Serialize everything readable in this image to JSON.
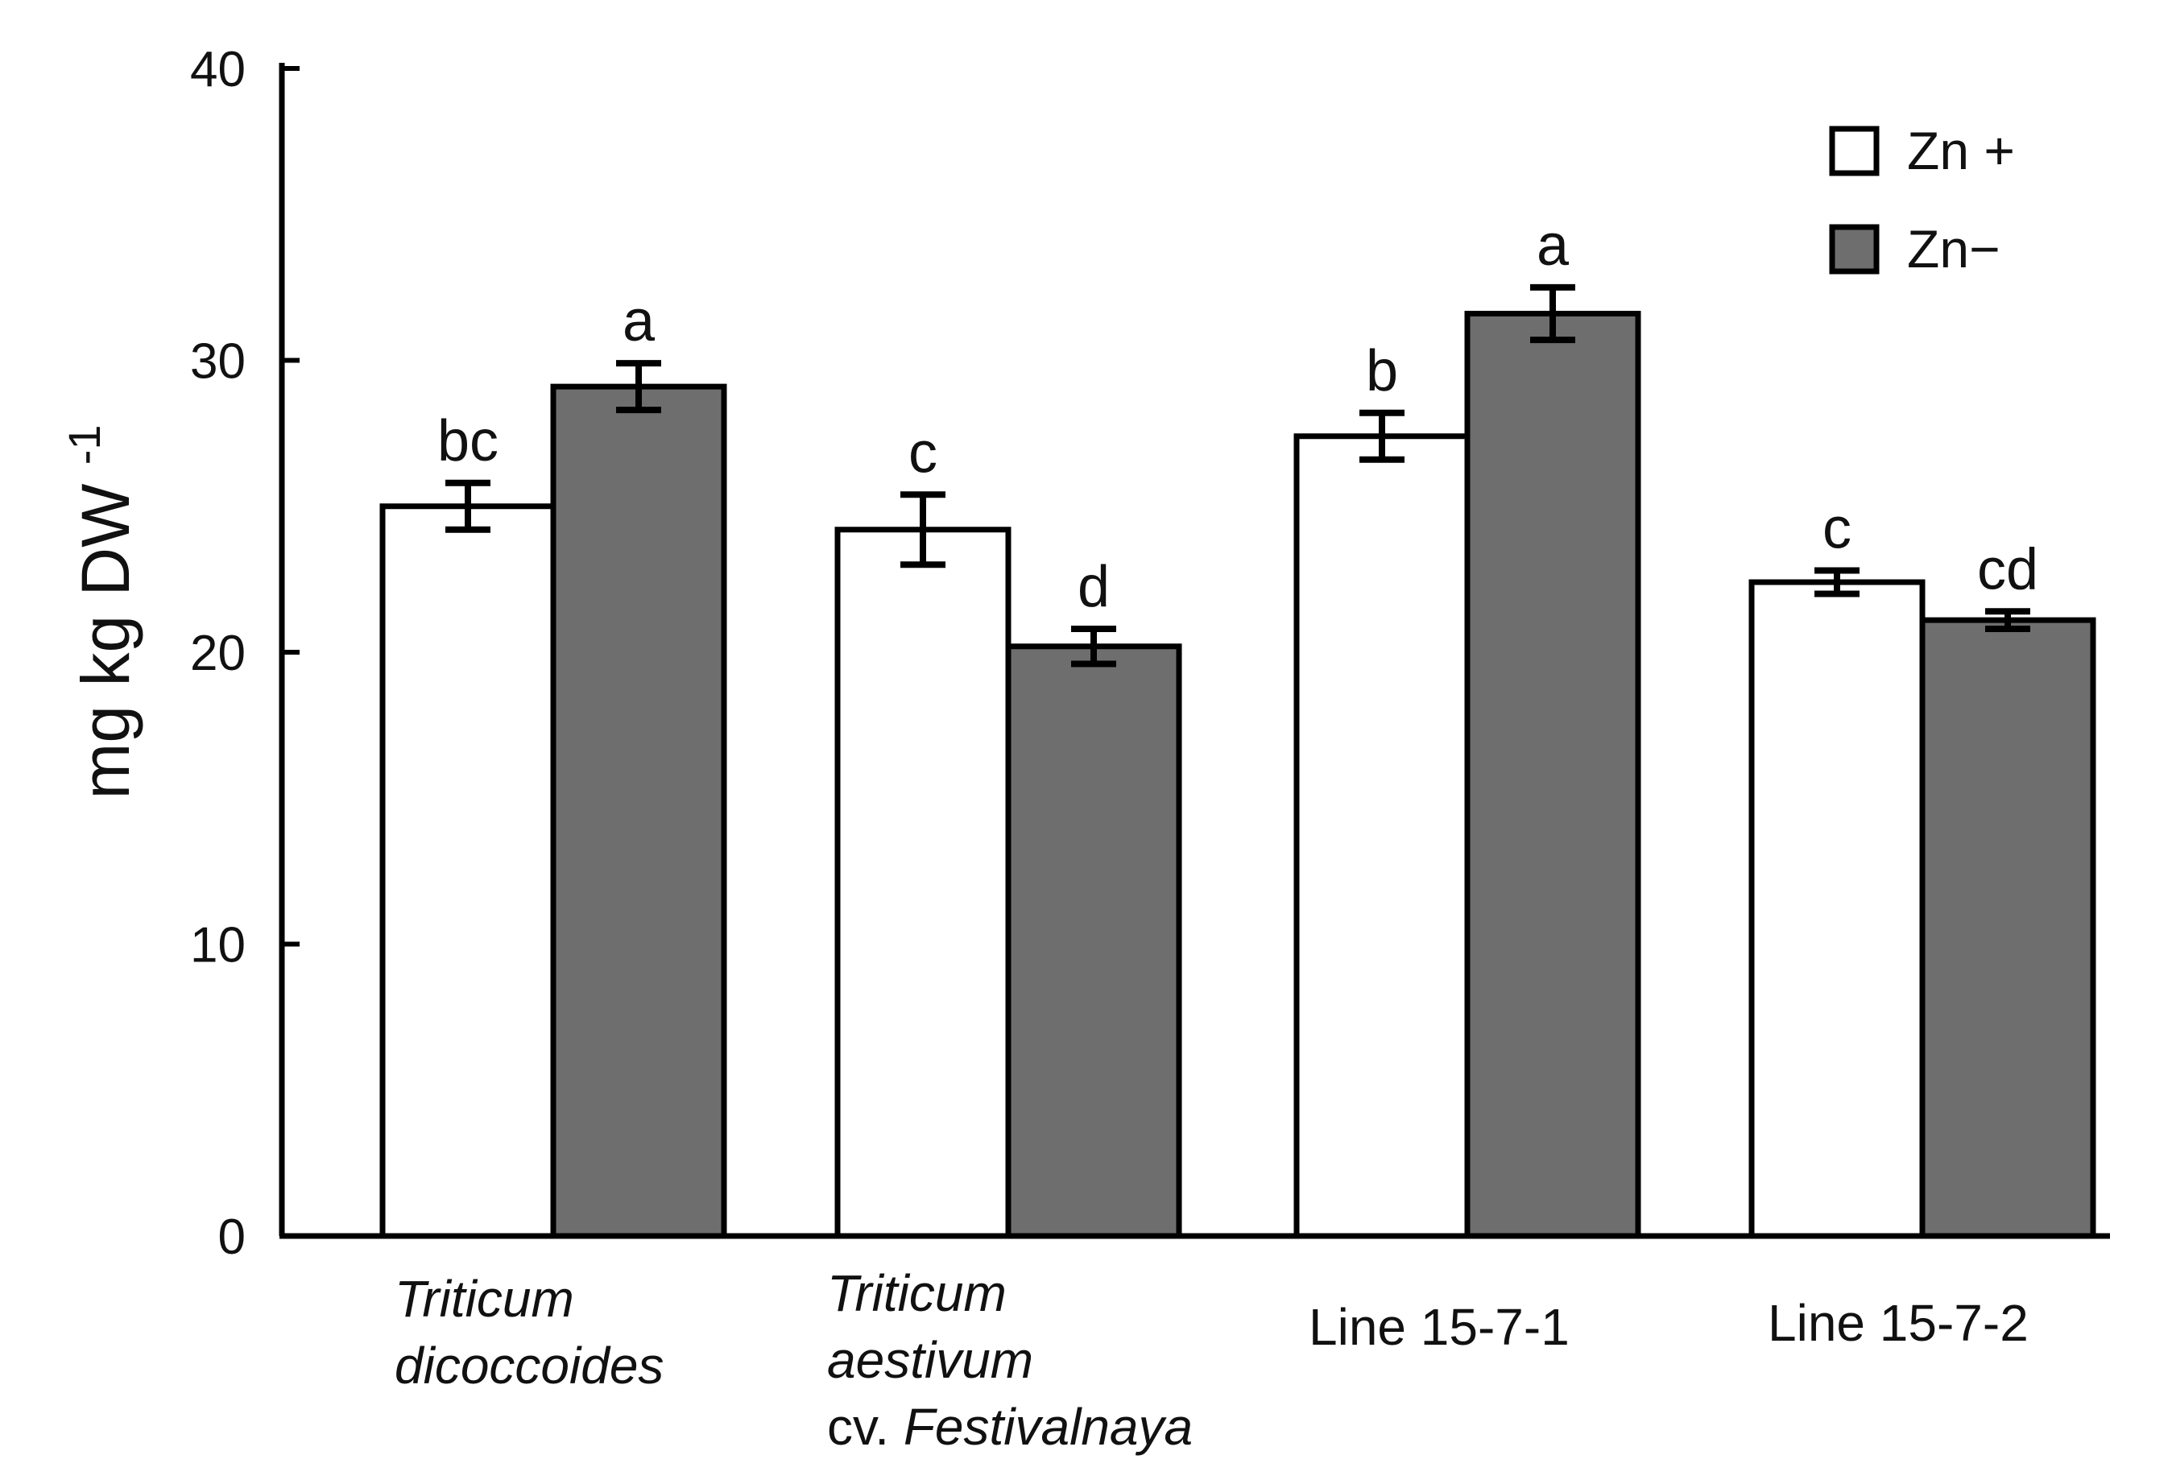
{
  "chart_data": {
    "type": "bar",
    "ylabel": "mg kg DW",
    "ylabel_superscript": "-1",
    "ylim": [
      0,
      40
    ],
    "yticks": [
      "0",
      "10",
      "20",
      "30",
      "40"
    ],
    "categories": [
      {
        "lines": [
          {
            "parts": [
              {
                "text": "Triticum",
                "italic": true
              }
            ]
          },
          {
            "parts": [
              {
                "text": "dicoccoides",
                "italic": true
              }
            ]
          }
        ]
      },
      {
        "lines": [
          {
            "parts": [
              {
                "text": "Triticum",
                "italic": true
              }
            ]
          },
          {
            "parts": [
              {
                "text": "aestivum",
                "italic": true
              }
            ]
          },
          {
            "parts": [
              {
                "text": "cv. ",
                "italic": false
              },
              {
                "text": "Festivalnaya",
                "italic": true
              }
            ]
          }
        ]
      },
      {
        "lines": [
          {
            "parts": [
              {
                "text": "Line 15-7-1",
                "italic": false
              }
            ]
          }
        ]
      },
      {
        "lines": [
          {
            "parts": [
              {
                "text": "Line 15-7-2",
                "italic": false
              }
            ]
          }
        ]
      }
    ],
    "series": [
      {
        "name": "Zn +",
        "color": "#ffffff",
        "values": [
          25.0,
          24.2,
          27.4,
          22.4
        ],
        "errors": [
          0.8,
          1.2,
          0.8,
          0.4
        ],
        "letters": [
          "bc",
          "c",
          "b",
          "c"
        ]
      },
      {
        "name": "Zn−",
        "color": "#6e6e6e",
        "values": [
          29.1,
          20.2,
          31.6,
          21.1
        ],
        "errors": [
          0.8,
          0.6,
          0.9,
          0.3
        ],
        "letters": [
          "a",
          "d",
          "a",
          "cd"
        ]
      }
    ],
    "legend_position": "top-right"
  }
}
